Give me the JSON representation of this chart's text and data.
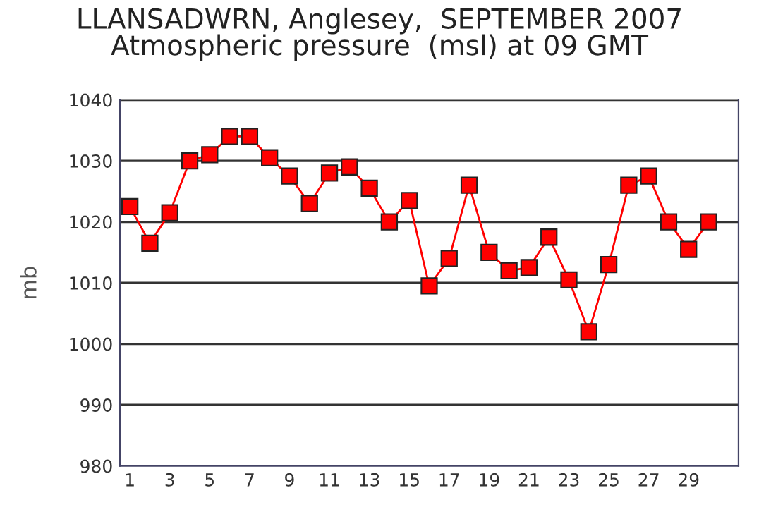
{
  "chart_data": {
    "type": "line",
    "title": "LLANSADWRN, Anglesey,  SEPTEMBER 2007\nAtmospheric pressure  (msl) at 09 GMT",
    "ylabel": "mb",
    "x": [
      1,
      2,
      3,
      4,
      5,
      6,
      7,
      8,
      9,
      10,
      11,
      12,
      13,
      14,
      15,
      16,
      17,
      18,
      19,
      20,
      21,
      22,
      23,
      24,
      25,
      26,
      27,
      28,
      29,
      30
    ],
    "series": [
      {
        "color": "#ff0000",
        "values": [
          1022.5,
          1016.5,
          1021.5,
          1030,
          1031,
          1034,
          1034,
          1030.5,
          1027.5,
          1023,
          1028,
          1029,
          1025.5,
          1020,
          1023.5,
          1009.5,
          1014,
          1026,
          1015,
          1012,
          1012.5,
          1017.5,
          1010.5,
          1002,
          1013,
          1026,
          1027.5,
          1020,
          1015.5,
          1020
        ]
      }
    ],
    "xlim": [
      0.5,
      31.5
    ],
    "xticks": [
      1,
      3,
      5,
      7,
      9,
      11,
      13,
      15,
      17,
      19,
      21,
      23,
      25,
      27,
      29
    ],
    "ylim": [
      980,
      1040
    ],
    "yticks": [
      980,
      990,
      1000,
      1010,
      1020,
      1030,
      1040
    ],
    "grid": "y",
    "marker": "square",
    "line_style": "solid"
  }
}
